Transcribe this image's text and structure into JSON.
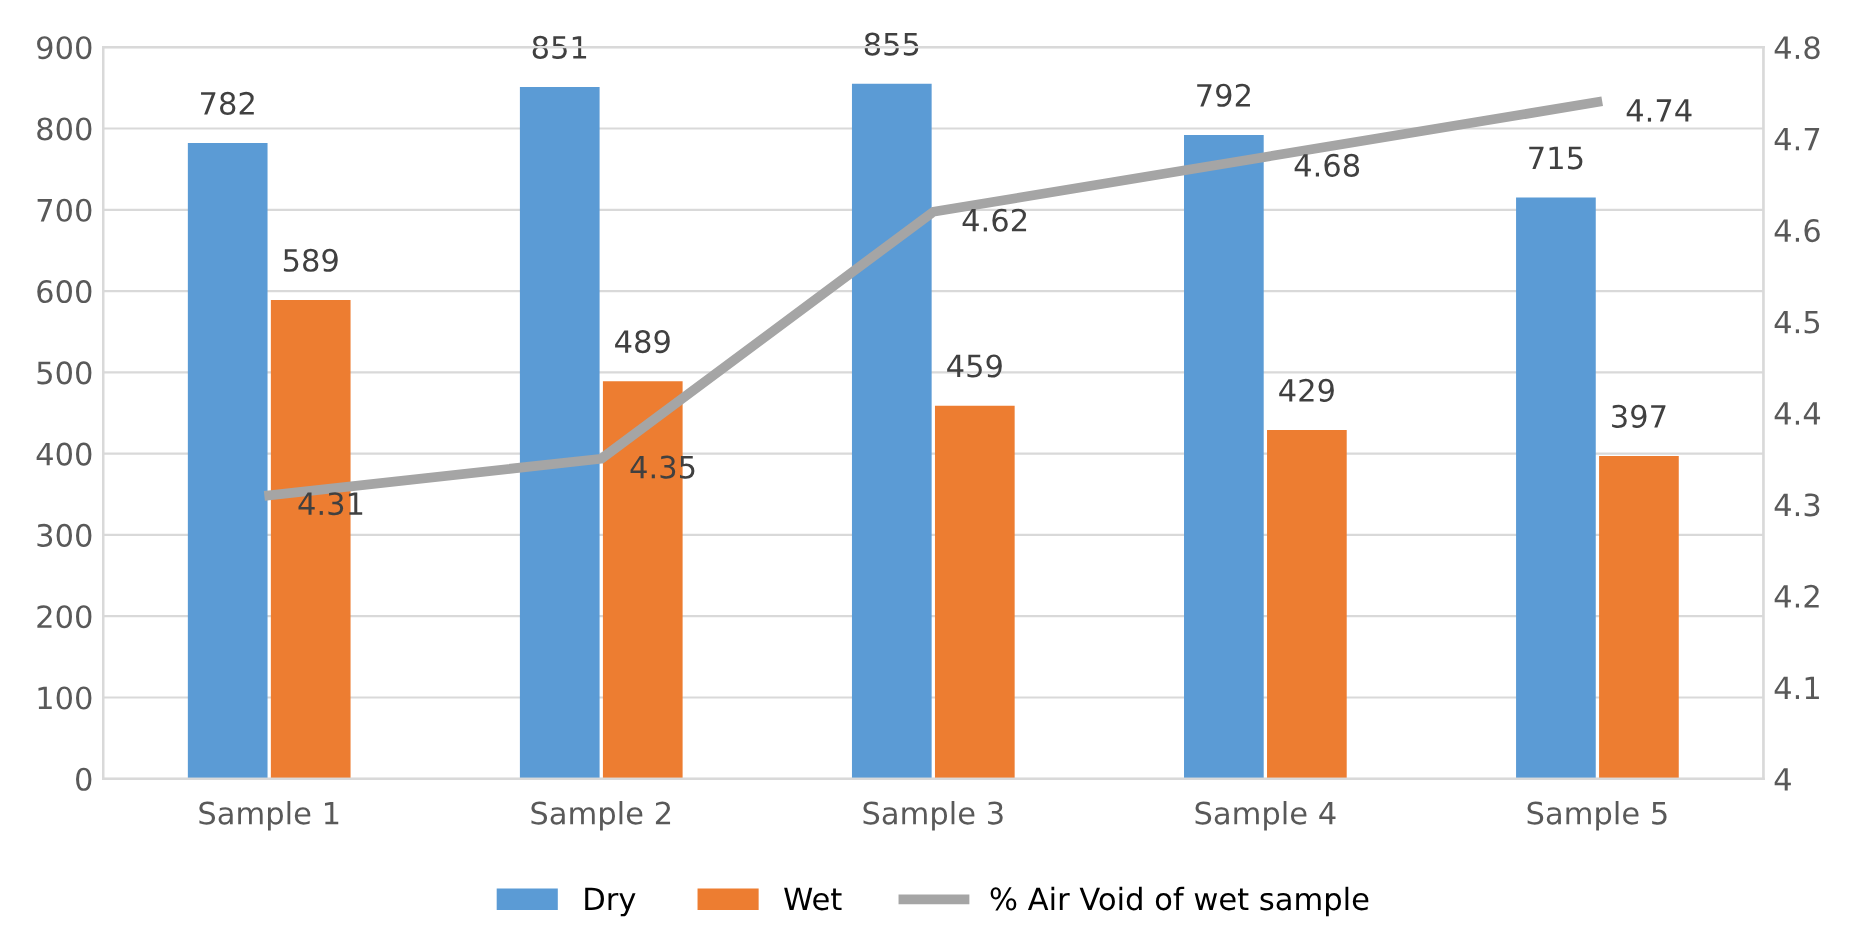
{
  "chart_data": {
    "type": "bar",
    "categories": [
      "Sample 1",
      "Sample 2",
      "Sample 3",
      "Sample 4",
      "Sample 5"
    ],
    "series": [
      {
        "name": "Dry",
        "color": "#5b9bd5",
        "values": [
          782,
          851,
          855,
          792,
          715
        ]
      },
      {
        "name": "Wet",
        "color": "#ed7d31",
        "values": [
          589,
          489,
          459,
          429,
          397
        ]
      },
      {
        "name": "% Air Void of wet sample",
        "type": "line",
        "axis": "y2",
        "color": "#a5a5a5",
        "values": [
          4.31,
          4.35,
          4.62,
          4.68,
          4.74
        ]
      }
    ],
    "ylim": [
      0,
      900
    ],
    "yticks": [
      0,
      100,
      200,
      300,
      400,
      500,
      600,
      700,
      800,
      900
    ],
    "y2lim": [
      4,
      4.8
    ],
    "y2ticks": [
      4,
      4.1,
      4.2,
      4.3,
      4.4,
      4.5,
      4.6,
      4.7,
      4.8
    ],
    "data_labels": true,
    "grid": "y",
    "legend": "bottom",
    "marker": "none",
    "line_style": "solid"
  }
}
